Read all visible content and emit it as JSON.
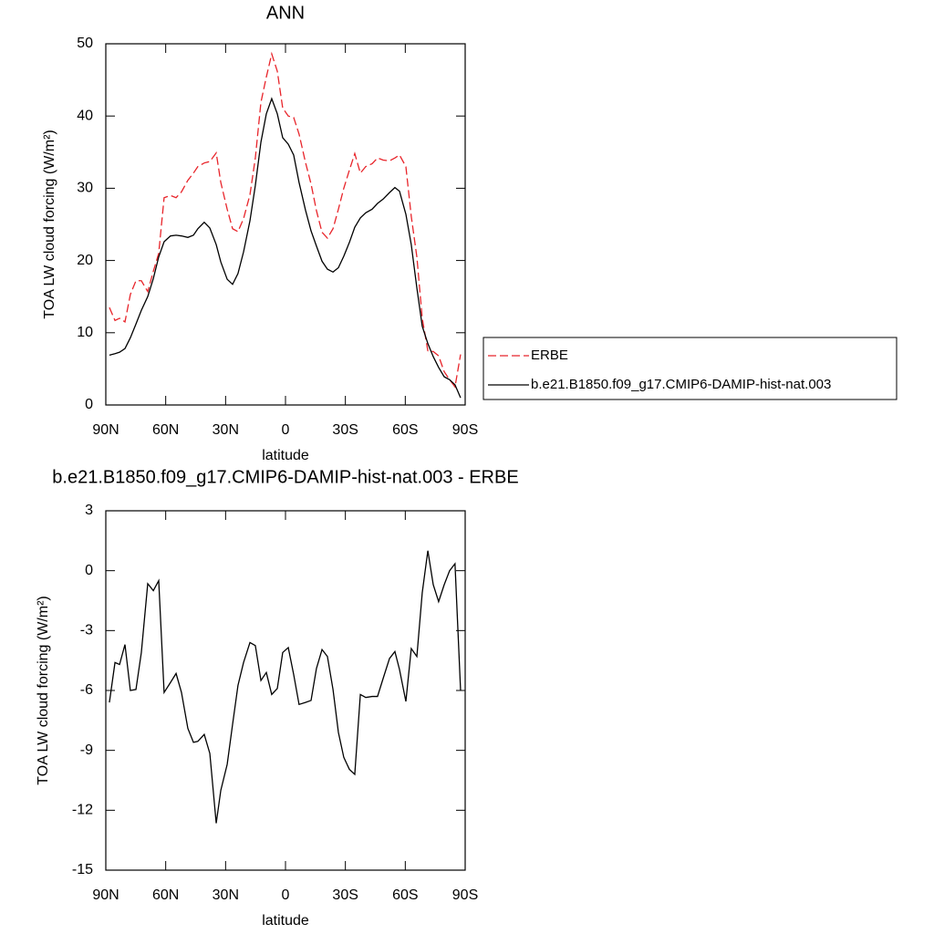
{
  "chart_data": [
    {
      "type": "line",
      "title": "ANN",
      "xlabel": "latitude",
      "ylabel": "TOA LW cloud forcing (W/m²)",
      "x": [
        88.2,
        85.4,
        83.1,
        80.4,
        77.7,
        74.9,
        72.2,
        69.0,
        66.2,
        63.5,
        60.8,
        57.6,
        54.8,
        52.1,
        48.9,
        46.1,
        43.9,
        40.7,
        37.9,
        34.7,
        32.4,
        29.2,
        26.5,
        23.8,
        21.0,
        17.8,
        15.1,
        12.3,
        9.6,
        6.9,
        4.1,
        1.4,
        -1.4,
        -4.1,
        -6.8,
        -10.0,
        -12.8,
        -15.5,
        -18.3,
        -21.0,
        -23.8,
        -26.5,
        -29.2,
        -32.0,
        -34.7,
        -37.5,
        -40.2,
        -43.4,
        -46.1,
        -48.9,
        -52.1,
        -54.8,
        -57.1,
        -60.3,
        -63.0,
        -65.8,
        -68.5,
        -71.3,
        -74.0,
        -76.7,
        -79.5,
        -82.2,
        -84.9,
        -87.7
      ],
      "series": [
        {
          "name": "ERBE",
          "color": "#e8242a",
          "dash": true,
          "values": [
            13.5,
            11.7,
            12.0,
            11.5,
            15.3,
            17.2,
            17.2,
            15.7,
            18.5,
            21.0,
            28.7,
            29.0,
            28.7,
            29.5,
            31.1,
            32.1,
            33.0,
            33.5,
            33.7,
            34.9,
            30.8,
            27.1,
            24.4,
            24.0,
            25.8,
            29.1,
            34.2,
            41.9,
            45.4,
            48.6,
            46.2,
            41.1,
            40.0,
            39.8,
            37.5,
            33.6,
            30.6,
            26.9,
            23.9,
            23.1,
            24.4,
            27.1,
            30.0,
            32.5,
            34.8,
            32.1,
            33.0,
            33.4,
            34.2,
            33.9,
            33.8,
            34.2,
            34.6,
            33.0,
            26.1,
            20.5,
            12.0,
            7.5,
            7.4,
            6.8,
            4.6,
            3.5,
            2.5,
            7.0
          ]
        },
        {
          "name": "b.e21.B1850.f09_g17.CMIP6-DAMIP-hist-nat.003",
          "color": "#000000",
          "dash": false,
          "values": [
            6.9,
            7.1,
            7.3,
            7.8,
            9.3,
            11.2,
            13.1,
            15.0,
            17.5,
            20.5,
            22.6,
            23.4,
            23.5,
            23.4,
            23.2,
            23.5,
            24.4,
            25.3,
            24.5,
            22.2,
            19.8,
            17.4,
            16.7,
            18.2,
            21.2,
            25.5,
            30.4,
            36.4,
            40.3,
            42.4,
            40.3,
            37.0,
            36.1,
            34.6,
            30.8,
            27.0,
            24.1,
            22.0,
            19.9,
            18.8,
            18.4,
            19.0,
            20.6,
            22.5,
            24.6,
            25.9,
            26.6,
            27.1,
            27.9,
            28.5,
            29.4,
            30.1,
            29.6,
            26.4,
            22.2,
            16.2,
            10.9,
            8.5,
            6.7,
            5.2,
            3.9,
            3.5,
            2.8,
            1.0
          ]
        }
      ],
      "xlim": [
        90,
        -90
      ],
      "xticks": [
        {
          "value": 90,
          "label": "90N"
        },
        {
          "value": 60,
          "label": "60N"
        },
        {
          "value": 30,
          "label": "30N"
        },
        0,
        {
          "value": -30,
          "label": "30S"
        },
        {
          "value": -60,
          "label": "60S"
        },
        {
          "value": -90,
          "label": "90S"
        }
      ],
      "ylim": [
        0,
        50
      ],
      "yticks": [
        0,
        10,
        20,
        30,
        40,
        50
      ],
      "legend": "right"
    },
    {
      "type": "line",
      "title": "b.e21.B1850.f09_g17.CMIP6-DAMIP-hist-nat.003 - ERBE",
      "xlabel": "latitude",
      "ylabel": "TOA LW cloud forcing (W/m²)",
      "x": [
        88.2,
        85.4,
        83.1,
        80.4,
        77.7,
        74.9,
        72.2,
        69.0,
        66.2,
        63.5,
        60.8,
        57.6,
        54.8,
        52.1,
        48.9,
        46.1,
        43.9,
        40.7,
        37.9,
        34.7,
        32.4,
        29.2,
        26.5,
        23.8,
        21.0,
        17.8,
        15.1,
        12.3,
        9.6,
        6.9,
        4.1,
        1.4,
        -1.4,
        -4.1,
        -6.8,
        -10.0,
        -12.8,
        -15.5,
        -18.3,
        -21.0,
        -23.8,
        -26.5,
        -29.2,
        -32.0,
        -34.7,
        -37.5,
        -40.2,
        -43.4,
        -46.1,
        -48.9,
        -52.1,
        -54.8,
        -57.1,
        -60.3,
        -63.0,
        -65.8,
        -68.5,
        -71.3,
        -74.0,
        -76.7,
        -79.5,
        -82.2,
        -84.9,
        -87.7
      ],
      "color": "#000000",
      "values": [
        -6.6,
        -4.6,
        -4.7,
        -3.7,
        -6.0,
        -5.95,
        -4.1,
        -0.65,
        -1.0,
        -0.5,
        -6.1,
        -5.6,
        -5.15,
        -6.1,
        -7.9,
        -8.6,
        -8.55,
        -8.2,
        -9.15,
        -12.65,
        -11.0,
        -9.7,
        -7.7,
        -5.75,
        -4.6,
        -3.6,
        -3.75,
        -5.5,
        -5.1,
        -6.2,
        -5.9,
        -4.1,
        -3.85,
        -5.2,
        -6.7,
        -6.6,
        -6.5,
        -4.9,
        -3.95,
        -4.3,
        -5.95,
        -8.1,
        -9.35,
        -9.95,
        -10.2,
        -6.2,
        -6.35,
        -6.3,
        -6.3,
        -5.4,
        -4.4,
        -4.05,
        -4.95,
        -6.55,
        -3.9,
        -4.3,
        -1.1,
        1.0,
        -0.7,
        -1.55,
        -0.7,
        0.0,
        0.35,
        -6.0
      ],
      "xlim": [
        90,
        -90
      ],
      "xticks": [
        {
          "value": 90,
          "label": "90N"
        },
        {
          "value": 60,
          "label": "60N"
        },
        {
          "value": 30,
          "label": "30N"
        },
        0,
        {
          "value": -30,
          "label": "30S"
        },
        {
          "value": -60,
          "label": "60S"
        },
        {
          "value": -90,
          "label": "90S"
        }
      ],
      "ylim": [
        -15,
        3
      ],
      "yticks": [
        -15,
        -12,
        -9,
        -6,
        -3,
        0,
        3
      ]
    }
  ]
}
